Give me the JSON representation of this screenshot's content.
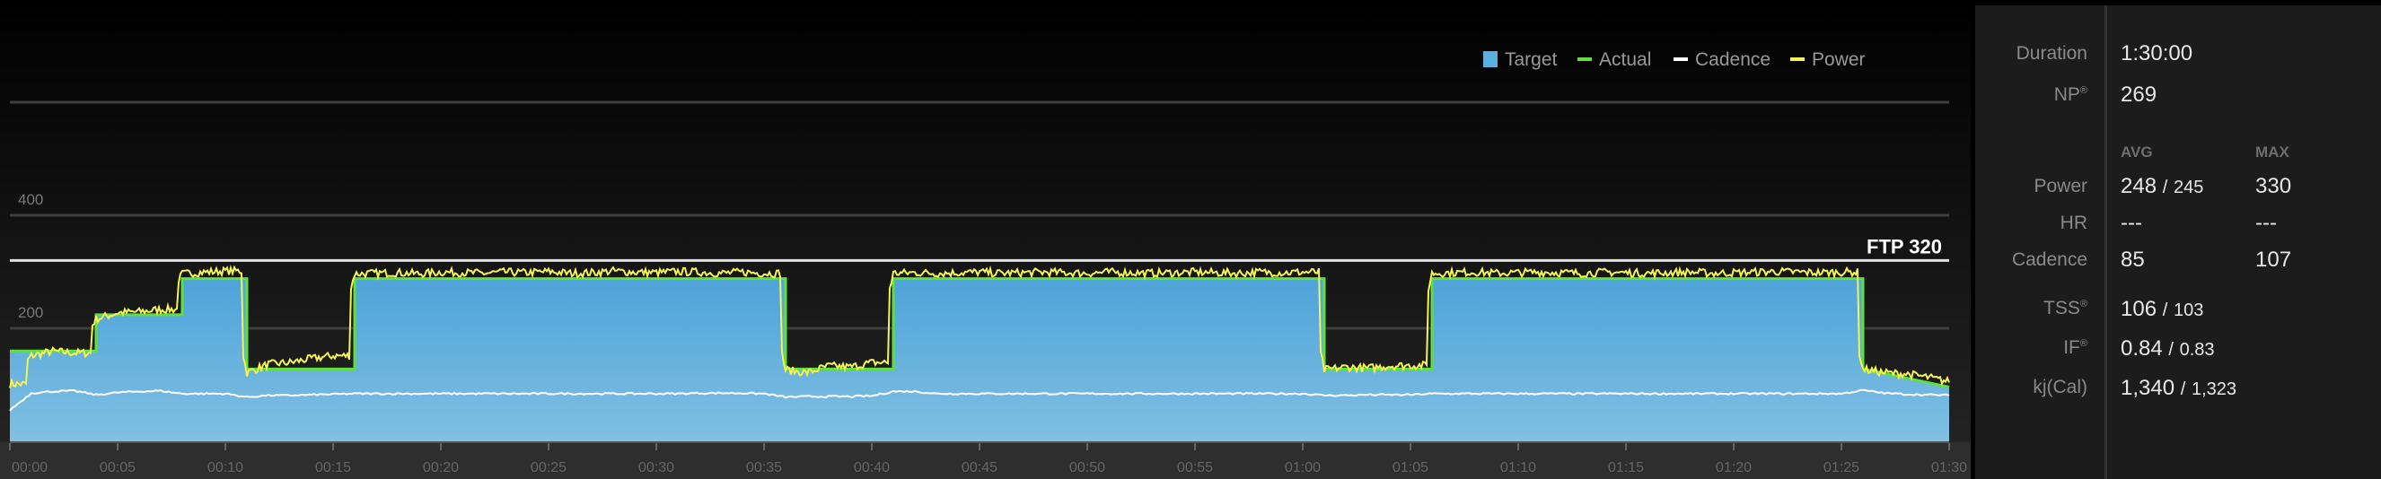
{
  "chart_data": {
    "type": "area",
    "legend": {
      "placement": "top-right",
      "items": [
        {
          "label": "Target",
          "color": "#5aaee0",
          "kind": "area"
        },
        {
          "label": "Actual",
          "color": "#5fe03c",
          "kind": "line"
        },
        {
          "label": "Cadence",
          "color": "#ffffff",
          "kind": "line"
        },
        {
          "label": "Power",
          "color": "#f5f552",
          "kind": "line"
        }
      ]
    },
    "ylim": [
      0,
      600
    ],
    "y_gridlines": [
      200,
      400,
      600
    ],
    "y_tick_labels": [
      "200",
      "400"
    ],
    "xlim_minutes": [
      0,
      90
    ],
    "x_tick_labels": [
      "00:00",
      "00:05",
      "00:10",
      "00:15",
      "00:20",
      "00:25",
      "00:30",
      "00:35",
      "00:40",
      "00:45",
      "00:50",
      "00:55",
      "01:00",
      "01:05",
      "01:10",
      "01:15",
      "01:20",
      "01:25",
      "01:30"
    ],
    "grid": true,
    "ftp": {
      "label": "FTP 320",
      "value": 320
    },
    "target_segments": [
      {
        "start": 0,
        "end": 4,
        "from": 160,
        "to": 160
      },
      {
        "start": 4,
        "end": 8,
        "from": 224,
        "to": 224
      },
      {
        "start": 8,
        "end": 11,
        "from": 288,
        "to": 288
      },
      {
        "start": 11,
        "end": 16,
        "from": 128,
        "to": 128
      },
      {
        "start": 16,
        "end": 36,
        "from": 288,
        "to": 288
      },
      {
        "start": 36,
        "end": 41,
        "from": 128,
        "to": 128
      },
      {
        "start": 41,
        "end": 61,
        "from": 288,
        "to": 288
      },
      {
        "start": 61,
        "end": 66,
        "from": 128,
        "to": 128
      },
      {
        "start": 66,
        "end": 86,
        "from": 288,
        "to": 288
      },
      {
        "start": 86,
        "end": 90,
        "from": 128,
        "to": 96
      }
    ],
    "power_per_minute": [
      100,
      150,
      158,
      155,
      215,
      226,
      228,
      232,
      295,
      298,
      300,
      120,
      135,
      138,
      145,
      150,
      295,
      296,
      297,
      295,
      298,
      297,
      296,
      298,
      297,
      299,
      296,
      297,
      300,
      298,
      297,
      299,
      298,
      296,
      298,
      296,
      125,
      120,
      132,
      130,
      138,
      296,
      297,
      296,
      297,
      298,
      296,
      297,
      298,
      297,
      296,
      298,
      297,
      296,
      297,
      298,
      297,
      296,
      298,
      297,
      298,
      125,
      130,
      128,
      132,
      133,
      296,
      297,
      298,
      296,
      297,
      298,
      297,
      296,
      298,
      297,
      296,
      297,
      298,
      296,
      297,
      298,
      299,
      298,
      297,
      298,
      126,
      120,
      118,
      112,
      104
    ],
    "cadence_per_minute": [
      55,
      85,
      88,
      89,
      82,
      86,
      88,
      89,
      84,
      84,
      84,
      78,
      81,
      81,
      82,
      83,
      84,
      84,
      84,
      84,
      84,
      84,
      84,
      84,
      84,
      84,
      84,
      84,
      84,
      84,
      84,
      84,
      85,
      85,
      85,
      84,
      78,
      79,
      79,
      79,
      80,
      88,
      88,
      84,
      84,
      84,
      84,
      84,
      84,
      84,
      84,
      84,
      84,
      84,
      84,
      84,
      84,
      84,
      84,
      84,
      84,
      81,
      81,
      82,
      82,
      82,
      84,
      84,
      84,
      84,
      84,
      84,
      84,
      84,
      84,
      84,
      84,
      84,
      84,
      84,
      84,
      84,
      84,
      84,
      84,
      84,
      90,
      85,
      83,
      82,
      81
    ]
  },
  "stats": {
    "duration": {
      "label": "Duration",
      "value": "1:30:00"
    },
    "np": {
      "label": "NP",
      "mark": "®",
      "value": "269"
    },
    "headers": {
      "avg": "AVG",
      "max": "MAX"
    },
    "power": {
      "label": "Power",
      "avg": "248",
      "sep": "/",
      "target": "245",
      "max": "330"
    },
    "hr": {
      "label": "HR",
      "avg": "---",
      "max": "---"
    },
    "cadence": {
      "label": "Cadence",
      "avg": "85",
      "max": "107"
    },
    "tss": {
      "label": "TSS",
      "mark": "®",
      "value": "106",
      "sep": "/",
      "target": "103"
    },
    "if": {
      "label": "IF",
      "mark": "®",
      "value": "0.84",
      "sep": "/",
      "target": "0.83"
    },
    "kj": {
      "label": "kj(Cal)",
      "value": "1,340",
      "sep": "/",
      "target": "1,323"
    }
  }
}
